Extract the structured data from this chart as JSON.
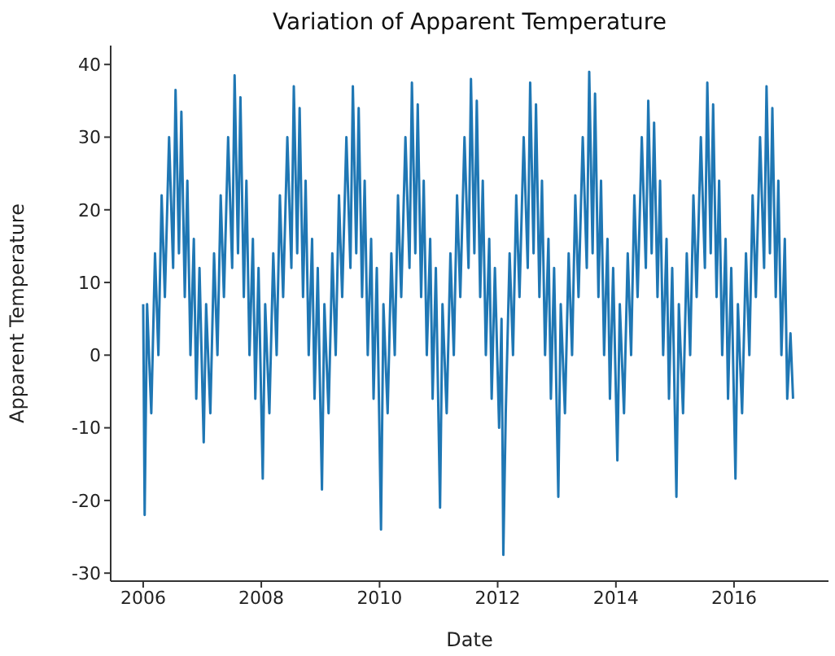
{
  "chart_data": {
    "type": "line",
    "title": "Variation of Apparent Temperature",
    "xlabel": "Date",
    "ylabel": "Apparent Temperature",
    "color": "#1f77b4",
    "xlim": [
      "2005-06-14",
      "2017-08-07"
    ],
    "ylim": [
      -31.1,
      42.6
    ],
    "xticks": [
      "2006",
      "2008",
      "2010",
      "2012",
      "2014",
      "2016"
    ],
    "yticks": [
      -30,
      -20,
      -10,
      0,
      10,
      20,
      30,
      40
    ],
    "x": [
      "2006-01-01",
      "2006-01-10",
      "2006-01-25",
      "2006-02-20",
      "2006-03-15",
      "2006-04-05",
      "2006-04-25",
      "2006-05-15",
      "2006-06-10",
      "2006-07-05",
      "2006-07-20",
      "2006-08-10",
      "2006-08-25",
      "2006-09-15",
      "2006-10-01",
      "2006-10-20",
      "2006-11-10",
      "2006-11-25",
      "2006-12-15",
      "2007-01-10",
      "2007-01-25",
      "2007-02-20",
      "2007-03-15",
      "2007-04-05",
      "2007-04-25",
      "2007-05-15",
      "2007-06-10",
      "2007-07-05",
      "2007-07-20",
      "2007-08-10",
      "2007-08-25",
      "2007-09-15",
      "2007-10-01",
      "2007-10-20",
      "2007-11-10",
      "2007-11-25",
      "2007-12-15",
      "2008-01-10",
      "2008-01-25",
      "2008-02-20",
      "2008-03-15",
      "2008-04-05",
      "2008-04-25",
      "2008-05-15",
      "2008-06-10",
      "2008-07-05",
      "2008-07-20",
      "2008-08-10",
      "2008-08-25",
      "2008-09-15",
      "2008-10-01",
      "2008-10-20",
      "2008-11-10",
      "2008-11-25",
      "2008-12-15",
      "2009-01-10",
      "2009-01-25",
      "2009-02-20",
      "2009-03-15",
      "2009-04-05",
      "2009-04-25",
      "2009-05-15",
      "2009-06-10",
      "2009-07-05",
      "2009-07-20",
      "2009-08-10",
      "2009-08-25",
      "2009-09-15",
      "2009-10-01",
      "2009-10-20",
      "2009-11-10",
      "2009-11-25",
      "2009-12-15",
      "2010-01-10",
      "2010-01-25",
      "2010-02-20",
      "2010-03-15",
      "2010-04-05",
      "2010-04-25",
      "2010-05-15",
      "2010-06-10",
      "2010-07-05",
      "2010-07-20",
      "2010-08-10",
      "2010-08-25",
      "2010-09-15",
      "2010-10-01",
      "2010-10-20",
      "2010-11-10",
      "2010-11-25",
      "2010-12-15",
      "2011-01-10",
      "2011-01-25",
      "2011-02-20",
      "2011-03-15",
      "2011-04-05",
      "2011-04-25",
      "2011-05-15",
      "2011-06-10",
      "2011-07-05",
      "2011-07-20",
      "2011-08-10",
      "2011-08-25",
      "2011-09-15",
      "2011-10-01",
      "2011-10-20",
      "2011-11-10",
      "2011-11-25",
      "2011-12-15",
      "2012-01-10",
      "2012-01-25",
      "2012-02-05",
      "2012-02-20",
      "2012-03-15",
      "2012-04-05",
      "2012-04-25",
      "2012-05-15",
      "2012-06-10",
      "2012-07-05",
      "2012-07-20",
      "2012-08-10",
      "2012-08-25",
      "2012-09-15",
      "2012-10-01",
      "2012-10-20",
      "2012-11-10",
      "2012-11-25",
      "2012-12-15",
      "2013-01-10",
      "2013-01-25",
      "2013-02-20",
      "2013-03-15",
      "2013-04-05",
      "2013-04-25",
      "2013-05-15",
      "2013-06-10",
      "2013-07-05",
      "2013-07-20",
      "2013-08-10",
      "2013-08-25",
      "2013-09-15",
      "2013-10-01",
      "2013-10-20",
      "2013-11-10",
      "2013-11-25",
      "2013-12-15",
      "2014-01-10",
      "2014-01-25",
      "2014-02-20",
      "2014-03-15",
      "2014-04-05",
      "2014-04-25",
      "2014-05-15",
      "2014-06-10",
      "2014-07-05",
      "2014-07-20",
      "2014-08-10",
      "2014-08-25",
      "2014-09-15",
      "2014-10-01",
      "2014-10-20",
      "2014-11-10",
      "2014-11-25",
      "2014-12-15",
      "2015-01-10",
      "2015-01-25",
      "2015-02-20",
      "2015-03-15",
      "2015-04-05",
      "2015-04-25",
      "2015-05-15",
      "2015-06-10",
      "2015-07-05",
      "2015-07-20",
      "2015-08-10",
      "2015-08-25",
      "2015-09-15",
      "2015-10-01",
      "2015-10-20",
      "2015-11-10",
      "2015-11-25",
      "2015-12-15",
      "2016-01-10",
      "2016-01-25",
      "2016-02-20",
      "2016-03-15",
      "2016-04-05",
      "2016-04-25",
      "2016-05-15",
      "2016-06-10",
      "2016-07-05",
      "2016-07-20",
      "2016-08-10",
      "2016-08-25",
      "2016-09-15",
      "2016-10-01",
      "2016-10-20",
      "2016-11-10",
      "2016-11-25",
      "2016-12-15",
      "2016-12-31"
    ],
    "values": [
      7,
      -22,
      7,
      -8,
      14,
      0,
      22,
      8,
      30,
      12,
      36.5,
      14,
      33.5,
      8,
      24,
      0,
      16,
      -6,
      12,
      -12,
      7,
      -8,
      14,
      0,
      22,
      8,
      30,
      12,
      38.5,
      14,
      35.5,
      8,
      24,
      0,
      16,
      -6,
      12,
      -17,
      7,
      -8,
      14,
      0,
      22,
      8,
      30,
      12,
      37,
      14,
      34,
      8,
      24,
      0,
      16,
      -6,
      12,
      -18.5,
      7,
      -8,
      14,
      0,
      22,
      8,
      30,
      12,
      37,
      14,
      34,
      8,
      24,
      0,
      16,
      -6,
      12,
      -24,
      7,
      -8,
      14,
      0,
      22,
      8,
      30,
      12,
      37.5,
      14,
      34.5,
      8,
      24,
      0,
      16,
      -6,
      12,
      -21,
      7,
      -8,
      14,
      0,
      22,
      8,
      30,
      12,
      38,
      14,
      35,
      8,
      24,
      0,
      16,
      -6,
      12,
      -10,
      5,
      -27.5,
      -8,
      14,
      0,
      22,
      8,
      30,
      12,
      37.5,
      14,
      34.5,
      8,
      24,
      0,
      16,
      -6,
      12,
      -19.5,
      7,
      -8,
      14,
      0,
      22,
      8,
      30,
      12,
      39,
      14,
      36,
      8,
      24,
      0,
      16,
      -6,
      12,
      -14.5,
      7,
      -8,
      14,
      0,
      22,
      8,
      30,
      12,
      35,
      14,
      32,
      8,
      24,
      0,
      16,
      -6,
      12,
      -19.5,
      7,
      -8,
      14,
      0,
      22,
      8,
      30,
      12,
      37.5,
      14,
      34.5,
      8,
      24,
      0,
      16,
      -6,
      12,
      -17,
      7,
      -8,
      14,
      0,
      22,
      8,
      30,
      12,
      37,
      14,
      34,
      8,
      24,
      0,
      16,
      -6,
      3,
      -6
    ]
  }
}
